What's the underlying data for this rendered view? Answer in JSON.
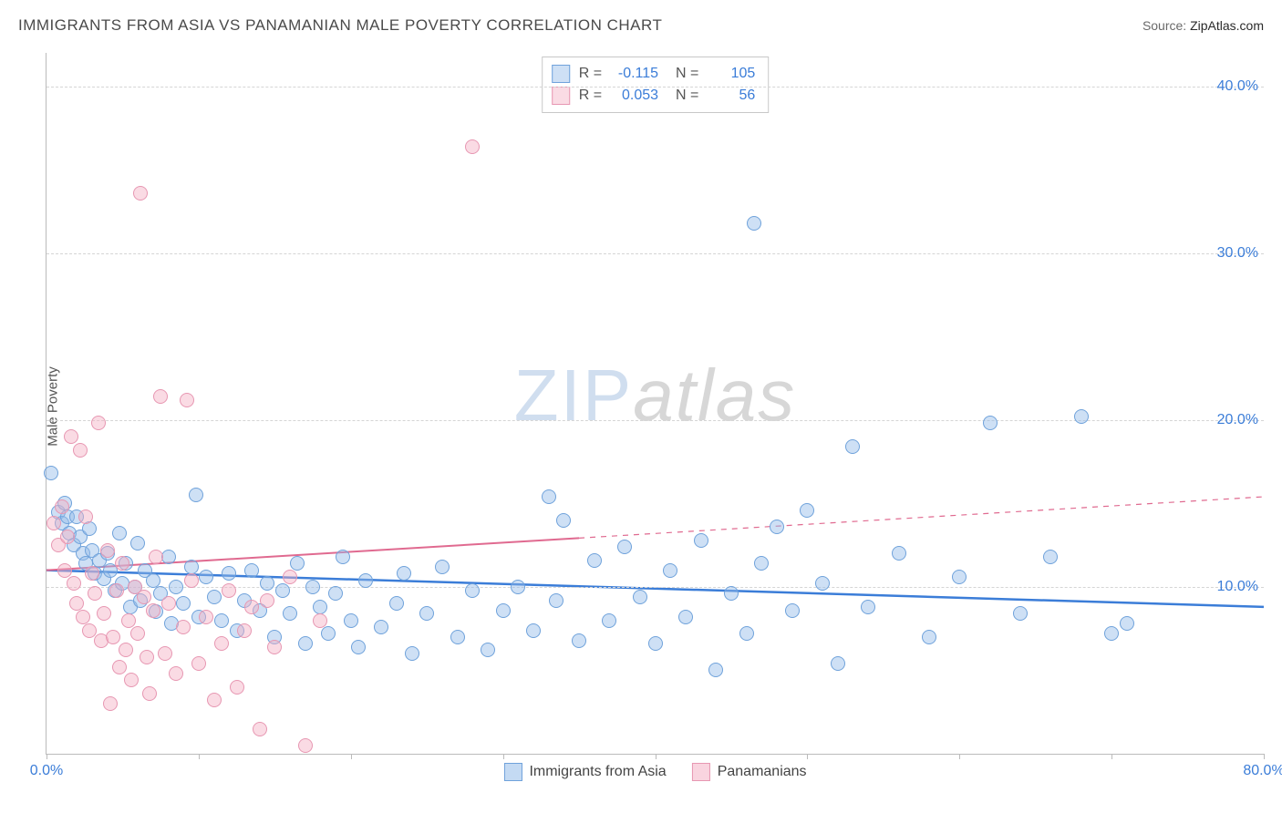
{
  "title": "IMMIGRANTS FROM ASIA VS PANAMANIAN MALE POVERTY CORRELATION CHART",
  "source_label": "Source:",
  "source_value": "ZipAtlas.com",
  "ylabel": "Male Poverty",
  "watermark_a": "ZIP",
  "watermark_b": "atlas",
  "chart": {
    "type": "scatter",
    "xlim": [
      0,
      80
    ],
    "ylim": [
      0,
      42
    ],
    "xtick_positions": [
      0,
      10,
      20,
      30,
      40,
      50,
      60,
      70,
      80
    ],
    "xtick_labels_shown": {
      "0": "0.0%",
      "80": "80.0%"
    },
    "ytick_positions": [
      0,
      10,
      20,
      30,
      40
    ],
    "ytick_labels_shown": {
      "10": "10.0%",
      "20": "20.0%",
      "30": "30.0%",
      "40": "40.0%"
    },
    "gridline_y_positions": [
      10,
      20,
      30,
      40
    ],
    "gridline_color": "#d5d5d5",
    "background_color": "#ffffff",
    "axis_color": "#bbbbbb",
    "point_radius": 8,
    "point_stroke_width": 1.2,
    "series": [
      {
        "name": "Immigrants from Asia",
        "fill": "rgba(147,187,233,0.45)",
        "stroke": "#6fa2db",
        "R": "-0.115",
        "N": "105",
        "points": [
          [
            0.3,
            16.8
          ],
          [
            0.8,
            14.5
          ],
          [
            1.0,
            13.8
          ],
          [
            1.2,
            15.0
          ],
          [
            1.4,
            14.2
          ],
          [
            1.5,
            13.2
          ],
          [
            1.8,
            12.5
          ],
          [
            2.0,
            14.2
          ],
          [
            2.2,
            13.0
          ],
          [
            2.4,
            12.0
          ],
          [
            2.6,
            11.4
          ],
          [
            2.8,
            13.5
          ],
          [
            3.0,
            12.2
          ],
          [
            3.2,
            10.8
          ],
          [
            3.5,
            11.6
          ],
          [
            3.8,
            10.5
          ],
          [
            4.0,
            12.0
          ],
          [
            4.2,
            11.0
          ],
          [
            4.5,
            9.8
          ],
          [
            4.8,
            13.2
          ],
          [
            5.0,
            10.2
          ],
          [
            5.2,
            11.4
          ],
          [
            5.5,
            8.8
          ],
          [
            5.8,
            10.0
          ],
          [
            6.0,
            12.6
          ],
          [
            6.2,
            9.2
          ],
          [
            6.5,
            11.0
          ],
          [
            7.0,
            10.4
          ],
          [
            7.2,
            8.5
          ],
          [
            7.5,
            9.6
          ],
          [
            8.0,
            11.8
          ],
          [
            8.2,
            7.8
          ],
          [
            8.5,
            10.0
          ],
          [
            9.0,
            9.0
          ],
          [
            9.5,
            11.2
          ],
          [
            9.8,
            15.5
          ],
          [
            10.0,
            8.2
          ],
          [
            10.5,
            10.6
          ],
          [
            11.0,
            9.4
          ],
          [
            11.5,
            8.0
          ],
          [
            12.0,
            10.8
          ],
          [
            12.5,
            7.4
          ],
          [
            13.0,
            9.2
          ],
          [
            13.5,
            11.0
          ],
          [
            14.0,
            8.6
          ],
          [
            14.5,
            10.2
          ],
          [
            15.0,
            7.0
          ],
          [
            15.5,
            9.8
          ],
          [
            16.0,
            8.4
          ],
          [
            16.5,
            11.4
          ],
          [
            17.0,
            6.6
          ],
          [
            17.5,
            10.0
          ],
          [
            18.0,
            8.8
          ],
          [
            18.5,
            7.2
          ],
          [
            19.0,
            9.6
          ],
          [
            19.5,
            11.8
          ],
          [
            20.0,
            8.0
          ],
          [
            20.5,
            6.4
          ],
          [
            21.0,
            10.4
          ],
          [
            22.0,
            7.6
          ],
          [
            23.0,
            9.0
          ],
          [
            23.5,
            10.8
          ],
          [
            24.0,
            6.0
          ],
          [
            25.0,
            8.4
          ],
          [
            26.0,
            11.2
          ],
          [
            27.0,
            7.0
          ],
          [
            28.0,
            9.8
          ],
          [
            29.0,
            6.2
          ],
          [
            30.0,
            8.6
          ],
          [
            31.0,
            10.0
          ],
          [
            32.0,
            7.4
          ],
          [
            33.0,
            15.4
          ],
          [
            33.5,
            9.2
          ],
          [
            34.0,
            14.0
          ],
          [
            35.0,
            6.8
          ],
          [
            36.0,
            11.6
          ],
          [
            37.0,
            8.0
          ],
          [
            38.0,
            12.4
          ],
          [
            39.0,
            9.4
          ],
          [
            40.0,
            6.6
          ],
          [
            41.0,
            11.0
          ],
          [
            42.0,
            8.2
          ],
          [
            43.0,
            12.8
          ],
          [
            44.0,
            5.0
          ],
          [
            45.0,
            9.6
          ],
          [
            46.0,
            7.2
          ],
          [
            46.5,
            31.8
          ],
          [
            47.0,
            11.4
          ],
          [
            48.0,
            13.6
          ],
          [
            49.0,
            8.6
          ],
          [
            50.0,
            14.6
          ],
          [
            51.0,
            10.2
          ],
          [
            52.0,
            5.4
          ],
          [
            53.0,
            18.4
          ],
          [
            54.0,
            8.8
          ],
          [
            56.0,
            12.0
          ],
          [
            58.0,
            7.0
          ],
          [
            60.0,
            10.6
          ],
          [
            62.0,
            19.8
          ],
          [
            64.0,
            8.4
          ],
          [
            66.0,
            11.8
          ],
          [
            68.0,
            20.2
          ],
          [
            70.0,
            7.2
          ],
          [
            71.0,
            7.8
          ]
        ],
        "trend": {
          "y_at_x0": 11.0,
          "y_at_x80": 8.8,
          "stroke": "#3b7dd8",
          "width": 2.5,
          "dash_from_x": null
        }
      },
      {
        "name": "Panamanians",
        "fill": "rgba(244,176,196,0.45)",
        "stroke": "#e797b2",
        "R": "0.053",
        "N": "56",
        "points": [
          [
            0.5,
            13.8
          ],
          [
            0.8,
            12.5
          ],
          [
            1.0,
            14.8
          ],
          [
            1.2,
            11.0
          ],
          [
            1.4,
            13.0
          ],
          [
            1.6,
            19.0
          ],
          [
            1.8,
            10.2
          ],
          [
            2.0,
            9.0
          ],
          [
            2.2,
            18.2
          ],
          [
            2.4,
            8.2
          ],
          [
            2.6,
            14.2
          ],
          [
            2.8,
            7.4
          ],
          [
            3.0,
            10.8
          ],
          [
            3.2,
            9.6
          ],
          [
            3.4,
            19.8
          ],
          [
            3.6,
            6.8
          ],
          [
            3.8,
            8.4
          ],
          [
            4.0,
            12.2
          ],
          [
            4.2,
            3.0
          ],
          [
            4.4,
            7.0
          ],
          [
            4.6,
            9.8
          ],
          [
            4.8,
            5.2
          ],
          [
            5.0,
            11.4
          ],
          [
            5.2,
            6.2
          ],
          [
            5.4,
            8.0
          ],
          [
            5.6,
            4.4
          ],
          [
            5.8,
            10.0
          ],
          [
            6.0,
            7.2
          ],
          [
            6.2,
            33.6
          ],
          [
            6.4,
            9.4
          ],
          [
            6.6,
            5.8
          ],
          [
            6.8,
            3.6
          ],
          [
            7.0,
            8.6
          ],
          [
            7.2,
            11.8
          ],
          [
            7.5,
            21.4
          ],
          [
            7.8,
            6.0
          ],
          [
            8.0,
            9.0
          ],
          [
            8.5,
            4.8
          ],
          [
            9.0,
            7.6
          ],
          [
            9.2,
            21.2
          ],
          [
            9.5,
            10.4
          ],
          [
            10.0,
            5.4
          ],
          [
            10.5,
            8.2
          ],
          [
            11.0,
            3.2
          ],
          [
            11.5,
            6.6
          ],
          [
            12.0,
            9.8
          ],
          [
            12.5,
            4.0
          ],
          [
            13.0,
            7.4
          ],
          [
            13.5,
            8.8
          ],
          [
            14.0,
            1.5
          ],
          [
            14.5,
            9.2
          ],
          [
            15.0,
            6.4
          ],
          [
            16.0,
            10.6
          ],
          [
            17.0,
            0.5
          ],
          [
            18.0,
            8.0
          ],
          [
            28.0,
            36.4
          ]
        ],
        "trend": {
          "y_at_x0": 11.0,
          "y_at_x80": 15.4,
          "stroke": "#e06a90",
          "width": 2,
          "dash_from_x": 35
        }
      }
    ]
  },
  "legend_bottom": [
    {
      "label": "Immigrants from Asia",
      "fill": "rgba(147,187,233,0.55)",
      "stroke": "#6fa2db"
    },
    {
      "label": "Panamanians",
      "fill": "rgba(244,176,196,0.55)",
      "stroke": "#e797b2"
    }
  ]
}
